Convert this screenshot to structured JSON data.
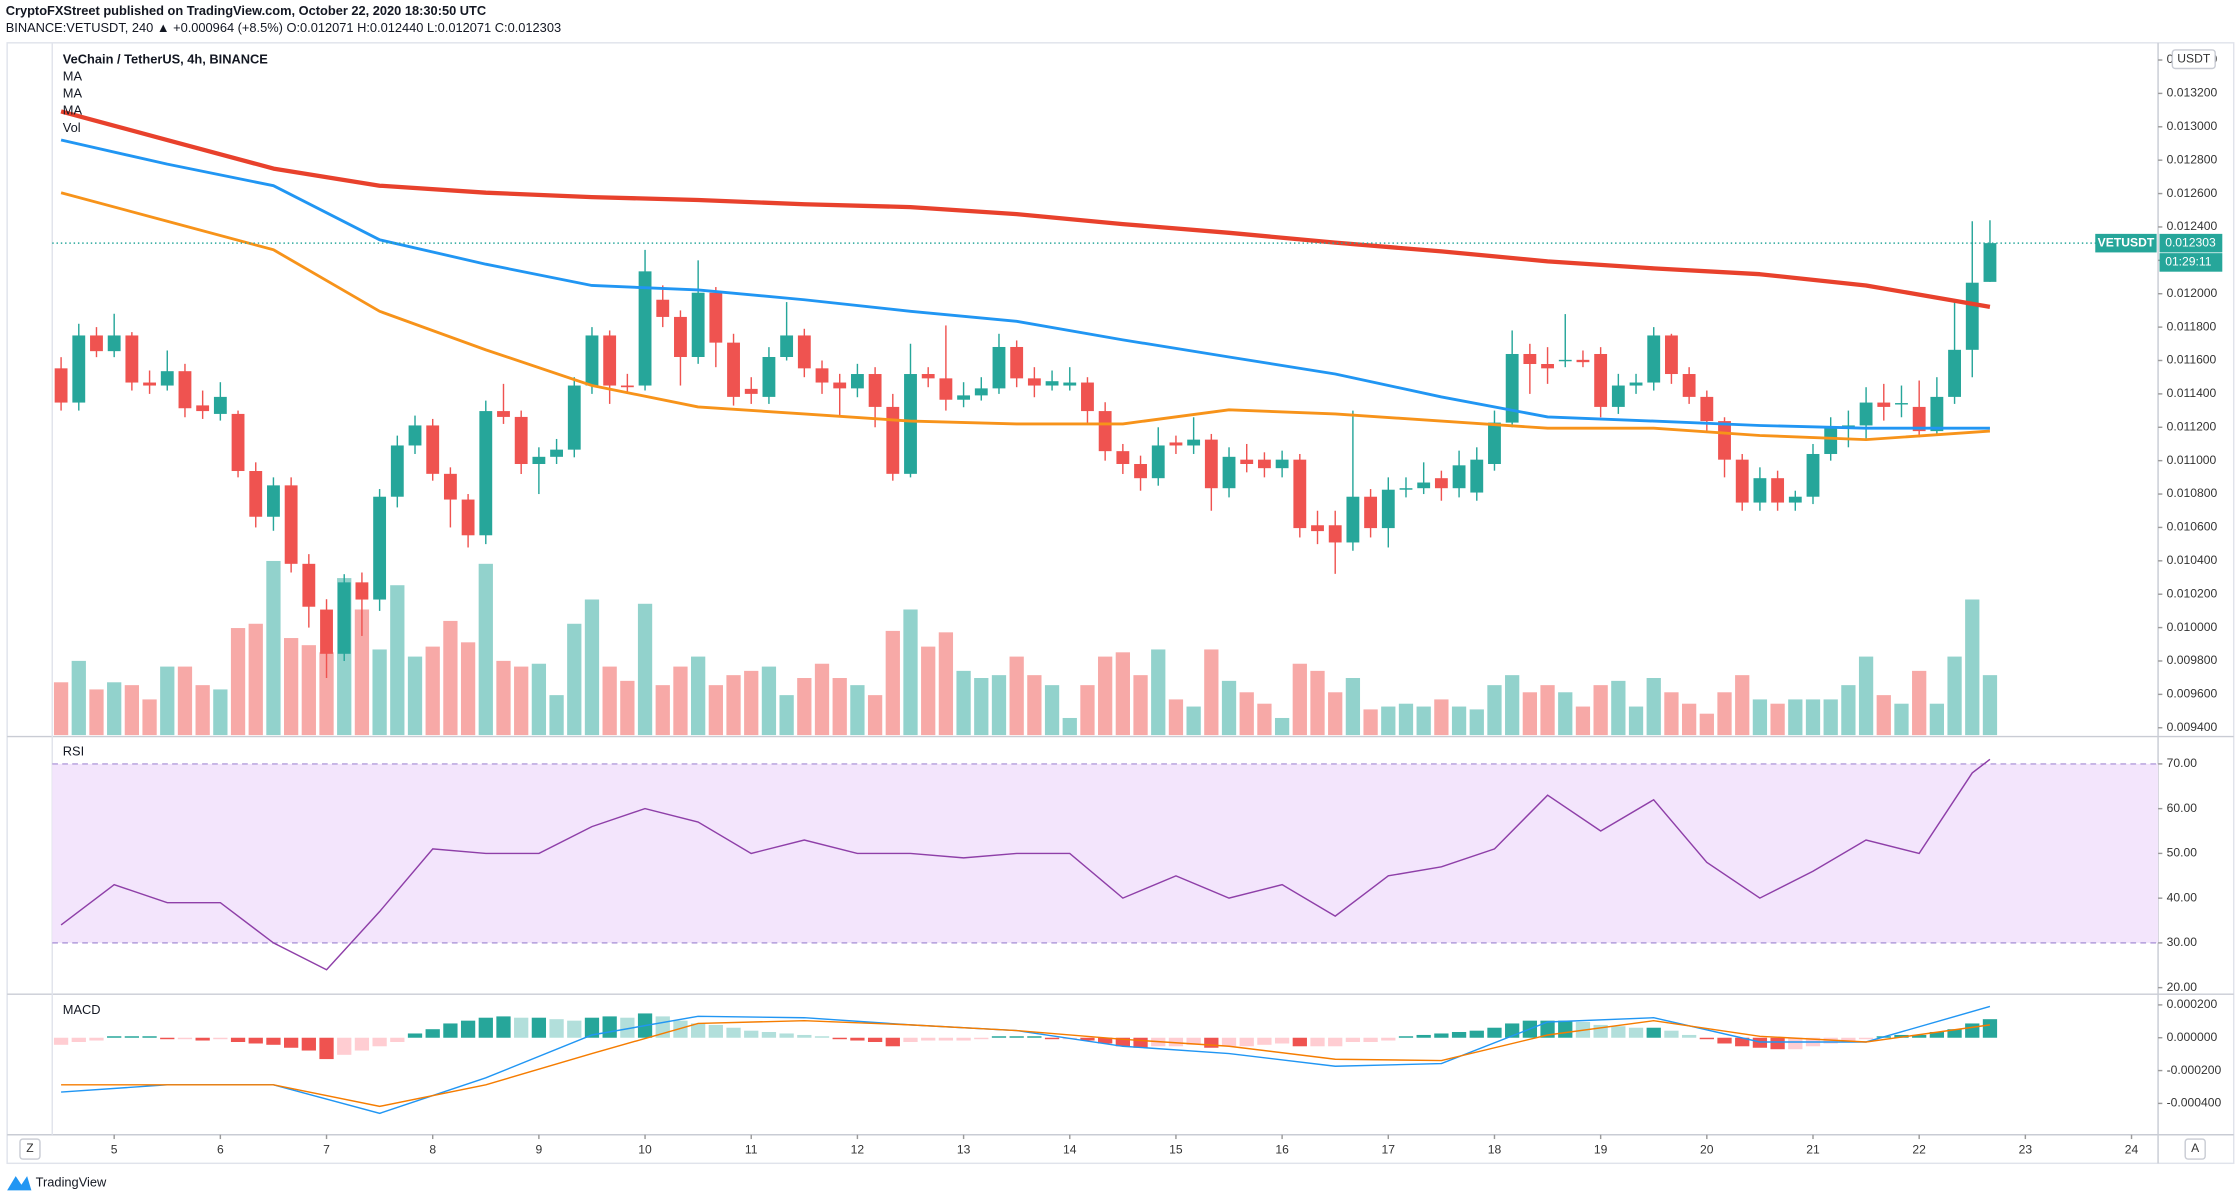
{
  "header": {
    "publisher": "CryptoFXStreet published on TradingView.com, October 22, 2020 18:30:50 UTC",
    "symbol_line": "BINANCE:VETUSDT, 240 ▲ +0.000964 (+8.5%) O:0.012071 H:0.012440 L:0.012071 C:0.012303"
  },
  "footer": {
    "brand": "TradingView",
    "left_button": "Z",
    "right_button": "A"
  },
  "chart_data": {
    "type": "candlestick",
    "title": "VeChain / TetherUS, 4h, BINANCE",
    "y_unit": "USDT",
    "symbol_label": "VETUSDT",
    "last_price_label": "0.012303",
    "countdown": "01:29:11",
    "up_color": "#26a69a",
    "down_color": "#ef5350",
    "volume_up_color": "#92d2cc",
    "volume_down_color": "#f7a9a7",
    "volume_name": "Vol",
    "grid": false,
    "xlim": [
      -0.5,
      118.5
    ],
    "xticks": [
      {
        "value": 3,
        "label": "5"
      },
      {
        "value": 9,
        "label": "6"
      },
      {
        "value": 15,
        "label": "7"
      },
      {
        "value": 21,
        "label": "8"
      },
      {
        "value": 27,
        "label": "9"
      },
      {
        "value": 33,
        "label": "10"
      },
      {
        "value": 39,
        "label": "11"
      },
      {
        "value": 45,
        "label": "12"
      },
      {
        "value": 51,
        "label": "13"
      },
      {
        "value": 57,
        "label": "14"
      },
      {
        "value": 63,
        "label": "15"
      },
      {
        "value": 69,
        "label": "16"
      },
      {
        "value": 75,
        "label": "17"
      },
      {
        "value": 81,
        "label": "18"
      },
      {
        "value": 87,
        "label": "19"
      },
      {
        "value": 93,
        "label": "20"
      },
      {
        "value": 99,
        "label": "21"
      },
      {
        "value": 105,
        "label": "22"
      },
      {
        "value": 111,
        "label": "23"
      },
      {
        "value": 117,
        "label": "24"
      }
    ],
    "ylim": [
      0.009356,
      0.013503
    ],
    "yticks": [
      {
        "value": 0.0094,
        "label": "0.009400"
      },
      {
        "value": 0.0096,
        "label": "0.009600"
      },
      {
        "value": 0.0098,
        "label": "0.009800"
      },
      {
        "value": 0.01,
        "label": "0.010000"
      },
      {
        "value": 0.0102,
        "label": "0.010200"
      },
      {
        "value": 0.0104,
        "label": "0.010400"
      },
      {
        "value": 0.0106,
        "label": "0.010600"
      },
      {
        "value": 0.0108,
        "label": "0.010800"
      },
      {
        "value": 0.011,
        "label": "0.011000"
      },
      {
        "value": 0.0112,
        "label": "0.011200"
      },
      {
        "value": 0.0114,
        "label": "0.011400"
      },
      {
        "value": 0.0116,
        "label": "0.011600"
      },
      {
        "value": 0.0118,
        "label": "0.011800"
      },
      {
        "value": 0.012,
        "label": "0.012000"
      },
      {
        "value": 0.0122,
        "label": "0.012200"
      },
      {
        "value": 0.0124,
        "label": "0.012400"
      },
      {
        "value": 0.0126,
        "label": "0.012600"
      },
      {
        "value": 0.0128,
        "label": "0.012800"
      },
      {
        "value": 0.013,
        "label": "0.013000"
      },
      {
        "value": 0.0132,
        "label": "0.013200"
      },
      {
        "value": 0.0134,
        "label": "0.013400"
      }
    ],
    "open": [
      0.011553,
      0.011348,
      0.01175,
      0.011656,
      0.01175,
      0.011468,
      0.01145,
      0.011536,
      0.011331,
      0.01128,
      0.01128,
      0.010938,
      0.010664,
      0.010852,
      0.010382,
      0.010108,
      0.009843,
      0.010271,
      0.010168,
      0.010784,
      0.011091,
      0.011211,
      0.010921,
      0.010767,
      0.010553,
      0.011297,
      0.011262,
      0.01098,
      0.011023,
      0.011066,
      0.01145,
      0.01175,
      0.01145,
      0.01145,
      0.011964,
      0.011861,
      0.011621,
      0.012006,
      0.011707,
      0.01143,
      0.011382,
      0.011621,
      0.01175,
      0.011553,
      0.011468,
      0.011433,
      0.011519,
      0.011322,
      0.010921,
      0.011519,
      0.011493,
      0.011365,
      0.011391,
      0.011433,
      0.011681,
      0.011493,
      0.01145,
      0.01145,
      0.011468,
      0.011297,
      0.011057,
      0.01098,
      0.010895,
      0.011109,
      0.011091,
      0.011126,
      0.010835,
      0.011006,
      0.011006,
      0.010955,
      0.011006,
      0.010613,
      0.010613,
      0.01051,
      0.010784,
      0.010596,
      0.010826,
      0.010835,
      0.010895,
      0.010835,
      0.010809,
      0.01098,
      0.011228,
      0.011639,
      0.011579,
      0.011596,
      0.011604,
      0.011639,
      0.011322,
      0.01145,
      0.011468,
      0.01175,
      0.011519,
      0.011382,
      0.011237,
      0.011006,
      0.010749,
      0.010895,
      0.010749,
      0.010784,
      0.01104,
      0.011194,
      0.011211,
      0.011348,
      0.011339,
      0.011322,
      0.011177,
      0.011382,
      0.011664,
      0.012071
    ],
    "high": [
      0.01162,
      0.01182,
      0.0118,
      0.01188,
      0.01177,
      0.01154,
      0.01166,
      0.01158,
      0.01142,
      0.01147,
      0.0113,
      0.01099,
      0.0109,
      0.0109,
      0.01044,
      0.01017,
      0.01032,
      0.01033,
      0.01083,
      0.01115,
      0.01127,
      0.01125,
      0.01096,
      0.0108,
      0.01136,
      0.01146,
      0.0113,
      0.01108,
      0.01113,
      0.0115,
      0.0118,
      0.01178,
      0.01152,
      0.012263,
      0.01205,
      0.0119,
      0.0122,
      0.01204,
      0.01176,
      0.0115,
      0.01168,
      0.01195,
      0.01179,
      0.0116,
      0.01152,
      0.01158,
      0.01156,
      0.0114,
      0.0117,
      0.01156,
      0.01181,
      0.01147,
      0.0115,
      0.01176,
      0.01172,
      0.01156,
      0.01154,
      0.01156,
      0.0115,
      0.01135,
      0.0111,
      0.01103,
      0.0112,
      0.01115,
      0.01126,
      0.01116,
      0.01108,
      0.0111,
      0.01105,
      0.01106,
      0.01104,
      0.0107,
      0.0107,
      0.0113,
      0.01083,
      0.0109,
      0.0109,
      0.01099,
      0.01094,
      0.01106,
      0.01108,
      0.0113,
      0.01178,
      0.0117,
      0.01168,
      0.011878,
      0.01166,
      0.01168,
      0.01152,
      0.01152,
      0.0118,
      0.01176,
      0.01156,
      0.01142,
      0.01126,
      0.01104,
      0.01096,
      0.01094,
      0.01082,
      0.0111,
      0.01126,
      0.0113,
      0.01144,
      0.01146,
      0.01145,
      0.01148,
      0.0115,
      0.01195,
      0.012434,
      0.01244
    ],
    "low": [
      0.0113,
      0.0113,
      0.01162,
      0.01162,
      0.01142,
      0.0114,
      0.01142,
      0.01126,
      0.01125,
      0.01124,
      0.0109,
      0.0106,
      0.01058,
      0.01033,
      0.01,
      0.009698,
      0.0098,
      0.00995,
      0.0101,
      0.01072,
      0.01104,
      0.01088,
      0.0106,
      0.01048,
      0.0105,
      0.01122,
      0.01092,
      0.0108,
      0.01098,
      0.01102,
      0.0114,
      0.01134,
      0.0114,
      0.01142,
      0.0118,
      0.01145,
      0.01158,
      0.01156,
      0.01133,
      0.01134,
      0.01134,
      0.0116,
      0.0115,
      0.0114,
      0.01126,
      0.01138,
      0.0112,
      0.01088,
      0.0109,
      0.01144,
      0.0113,
      0.01132,
      0.01136,
      0.0114,
      0.01144,
      0.01138,
      0.01142,
      0.01142,
      0.01122,
      0.011,
      0.01092,
      0.01082,
      0.01085,
      0.01104,
      0.01104,
      0.0107,
      0.01078,
      0.01093,
      0.0109,
      0.0109,
      0.01054,
      0.0105,
      0.010322,
      0.01046,
      0.01054,
      0.01048,
      0.01078,
      0.0108,
      0.01076,
      0.01078,
      0.01076,
      0.01094,
      0.0112,
      0.0114,
      0.01146,
      0.01156,
      0.01156,
      0.01126,
      0.01128,
      0.0114,
      0.01142,
      0.01146,
      0.01134,
      0.01118,
      0.0109,
      0.0107,
      0.0107,
      0.0107,
      0.0107,
      0.01074,
      0.011,
      0.01108,
      0.01112,
      0.01124,
      0.01126,
      0.01114,
      0.01115,
      0.01134,
      0.0115,
      0.012071
    ],
    "close": [
      0.011348,
      0.01175,
      0.011656,
      0.01175,
      0.011468,
      0.01145,
      0.011536,
      0.011314,
      0.011297,
      0.011382,
      0.010938,
      0.010664,
      0.010852,
      0.010382,
      0.010125,
      0.009843,
      0.010271,
      0.010168,
      0.010784,
      0.011091,
      0.011211,
      0.010921,
      0.010767,
      0.010553,
      0.011297,
      0.011262,
      0.01098,
      0.011023,
      0.011066,
      0.01145,
      0.01175,
      0.01145,
      0.01144,
      0.012134,
      0.011861,
      0.011621,
      0.012006,
      0.011707,
      0.011382,
      0.0114,
      0.011621,
      0.01175,
      0.011553,
      0.011468,
      0.011433,
      0.011519,
      0.011322,
      0.010921,
      0.011519,
      0.011493,
      0.011365,
      0.011391,
      0.011433,
      0.011681,
      0.011493,
      0.01145,
      0.011476,
      0.011468,
      0.011297,
      0.011057,
      0.01098,
      0.010895,
      0.011091,
      0.011091,
      0.011126,
      0.010835,
      0.011023,
      0.01098,
      0.010955,
      0.011006,
      0.010596,
      0.010578,
      0.01051,
      0.010784,
      0.010596,
      0.010826,
      0.010835,
      0.010869,
      0.010835,
      0.010972,
      0.011006,
      0.011228,
      0.011639,
      0.011579,
      0.011553,
      0.011604,
      0.01159,
      0.011322,
      0.01145,
      0.011468,
      0.01175,
      0.011519,
      0.011382,
      0.011237,
      0.011006,
      0.010749,
      0.010895,
      0.010749,
      0.010784,
      0.01104,
      0.011194,
      0.011211,
      0.011348,
      0.011322,
      0.011345,
      0.011177,
      0.011382,
      0.011664,
      0.012066,
      0.012303
    ],
    "volume": [
      37,
      52,
      32,
      37,
      35,
      25,
      48,
      48,
      35,
      32,
      75,
      78,
      122,
      68,
      63,
      58,
      110,
      88,
      60,
      105,
      55,
      62,
      80,
      65,
      120,
      52,
      48,
      50,
      28,
      78,
      95,
      48,
      38,
      92,
      35,
      48,
      55,
      35,
      42,
      45,
      48,
      28,
      40,
      50,
      40,
      35,
      28,
      73,
      88,
      62,
      72,
      45,
      40,
      42,
      55,
      42,
      35,
      12,
      35,
      55,
      58,
      42,
      60,
      25,
      20,
      60,
      38,
      30,
      22,
      12,
      50,
      45,
      30,
      40,
      18,
      20,
      22,
      20,
      25,
      20,
      18,
      35,
      42,
      30,
      35,
      30,
      20,
      35,
      38,
      20,
      40,
      30,
      22,
      15,
      30,
      42,
      25,
      22,
      25,
      25,
      25,
      35,
      55,
      28,
      22,
      45,
      22,
      55,
      95,
      42
    ],
    "ma": [
      {
        "name": "MA",
        "color": "#f7931a",
        "x": [
          0,
          6,
          12,
          18,
          24,
          30,
          36,
          42,
          48,
          54,
          60,
          66,
          72,
          78,
          84,
          90,
          96,
          102,
          109
        ],
        "values": [
          0.012605,
          0.012434,
          0.012263,
          0.011895,
          0.011664,
          0.01145,
          0.011322,
          0.01128,
          0.011237,
          0.01122,
          0.01122,
          0.011305,
          0.01128,
          0.011237,
          0.011194,
          0.011194,
          0.011151,
          0.011126,
          0.011177
        ]
      },
      {
        "name": "MA",
        "color": "#2196f3",
        "x": [
          0,
          6,
          12,
          18,
          24,
          30,
          36,
          42,
          48,
          54,
          60,
          66,
          72,
          78,
          84,
          90,
          96,
          102,
          109
        ],
        "values": [
          0.012921,
          0.012776,
          0.012647,
          0.012323,
          0.012177,
          0.012049,
          0.012023,
          0.011964,
          0.011895,
          0.011835,
          0.011724,
          0.011621,
          0.011519,
          0.011382,
          0.011262,
          0.011237,
          0.011211,
          0.011194,
          0.011194
        ]
      },
      {
        "name": "MA",
        "color": "#e8412c",
        "x": [
          0,
          6,
          12,
          18,
          24,
          30,
          36,
          42,
          48,
          54,
          60,
          66,
          72,
          78,
          84,
          90,
          96,
          102,
          109
        ],
        "values": [
          0.013092,
          0.012921,
          0.01275,
          0.012647,
          0.012605,
          0.012579,
          0.012562,
          0.012536,
          0.012519,
          0.012477,
          0.012417,
          0.012365,
          0.012306,
          0.012254,
          0.012194,
          0.012152,
          0.012117,
          0.012049,
          0.011921
        ]
      }
    ],
    "rsi": {
      "title": "RSI",
      "color": "#8e3fa8",
      "band": [
        30,
        70
      ],
      "ylim": [
        18.7,
        75.8
      ],
      "yticks": [
        {
          "value": 20,
          "label": "20.00"
        },
        {
          "value": 30,
          "label": "30.00"
        },
        {
          "value": 40,
          "label": "40.00"
        },
        {
          "value": 50,
          "label": "50.00"
        },
        {
          "value": 60,
          "label": "60.00"
        },
        {
          "value": 70,
          "label": "70.00"
        }
      ],
      "x": [
        0,
        3,
        6,
        9,
        12,
        15,
        18,
        21,
        24,
        27,
        30,
        33,
        36,
        39,
        42,
        45,
        48,
        51,
        54,
        57,
        60,
        63,
        66,
        69,
        72,
        75,
        78,
        81,
        84,
        87,
        90,
        93,
        96,
        99,
        102,
        105,
        108,
        109
      ],
      "values": [
        34,
        43,
        39,
        39,
        30,
        24,
        37,
        51,
        50,
        50,
        56,
        60,
        57,
        50,
        53,
        50,
        50,
        49,
        50,
        50,
        40,
        45,
        40,
        43,
        36,
        45,
        47,
        51,
        63,
        55,
        62,
        48,
        40,
        46,
        53,
        50,
        68,
        71
      ]
    },
    "macd": {
      "title": "MACD",
      "ylim": [
        -0.000591,
        0.000261
      ],
      "yticks": [
        {
          "value": 0.0002,
          "label": "0.000200"
        },
        {
          "value": 0,
          "label": "0.000000"
        },
        {
          "value": -0.0002,
          "label": "-0.000200"
        },
        {
          "value": -0.0004,
          "label": "-0.000400"
        }
      ],
      "histogram": [
        -4.3e-05,
        -2.6e-05,
        -1.7e-05,
        9e-06,
        9e-06,
        9e-06,
        -9e-06,
        -9e-06,
        -1.7e-05,
        -9e-06,
        -2.6e-05,
        -3.5e-05,
        -4.3e-05,
        -6.1e-05,
        -7.8e-05,
        -0.00013,
        -0.000104,
        -7.8e-05,
        -5.2e-05,
        -2.6e-05,
        2.6e-05,
        5.2e-05,
        8.7e-05,
        0.000104,
        0.000122,
        0.00013,
        0.000122,
        0.000122,
        0.000113,
        0.000104,
        0.000122,
        0.00013,
        0.000122,
        0.000148,
        0.00013,
        0.000104,
        8.7e-05,
        7.8e-05,
        6.1e-05,
        4.3e-05,
        3.5e-05,
        2.6e-05,
        1.7e-05,
        9e-06,
        -9e-06,
        -1.7e-05,
        -2.6e-05,
        -5.2e-05,
        -2.6e-05,
        -1.7e-05,
        -1.7e-05,
        -1.7e-05,
        -9e-06,
        9e-06,
        9e-06,
        9e-06,
        -9e-06,
        -9e-06,
        -1.7e-05,
        -3.5e-05,
        -5.2e-05,
        -6.1e-05,
        -5.2e-05,
        -5.2e-05,
        -4.3e-05,
        -6.1e-05,
        -5.2e-05,
        -5.2e-05,
        -4.3e-05,
        -3.5e-05,
        -5.2e-05,
        -5.2e-05,
        -5.2e-05,
        -2.6e-05,
        -2.6e-05,
        -1.7e-05,
        9e-06,
        1.7e-05,
        2.6e-05,
        3.5e-05,
        4.3e-05,
        6.1e-05,
        8.7e-05,
        0.000104,
        0.000104,
        0.000104,
        9.6e-05,
        7.8e-05,
        7e-05,
        6.1e-05,
        6.1e-05,
        4.3e-05,
        1.7e-05,
        -9e-06,
        -3.5e-05,
        -5.2e-05,
        -6.1e-05,
        -7e-05,
        -7e-05,
        -5.2e-05,
        -3.5e-05,
        -2.6e-05,
        -9e-06,
        9e-06,
        1.7e-05,
        1.7e-05,
        3.5e-05,
        5.2e-05,
        8.7e-05,
        0.000113
      ],
      "up_colors": [
        "#26a69a",
        "#b2dfdb"
      ],
      "down_colors": [
        "#ef5350",
        "#ffcdd2"
      ],
      "lines": [
        {
          "color": "#2196f3",
          "x": [
            0,
            6,
            12,
            18,
            24,
            30,
            36,
            42,
            48,
            54,
            60,
            66,
            72,
            78,
            84,
            90,
            96,
            102,
            109
          ],
          "values": [
            -0.000331,
            -0.000287,
            -0.000287,
            -0.000461,
            -0.000244,
            1.7e-05,
            0.000131,
            0.000122,
            7.8e-05,
            4.4e-05,
            -5.2e-05,
            -9.6e-05,
            -0.000174,
            -0.000157,
            9.6e-05,
            0.000122,
            -2.6e-05,
            -2.6e-05,
            0.000191
          ]
        },
        {
          "color": "#f57c00",
          "x": [
            0,
            6,
            12,
            18,
            24,
            30,
            36,
            42,
            48,
            54,
            60,
            66,
            72,
            78,
            84,
            90,
            96,
            102,
            109
          ],
          "values": [
            -0.000287,
            -0.000287,
            -0.000287,
            -0.000418,
            -0.000287,
            -9.6e-05,
            8.7e-05,
            0.000104,
            7.8e-05,
            4.4e-05,
            -9e-06,
            -5.2e-05,
            -0.000131,
            -0.000139,
            1.7e-05,
            0.000104,
            9e-06,
            -2.6e-05,
            7.8e-05
          ]
        }
      ]
    }
  }
}
